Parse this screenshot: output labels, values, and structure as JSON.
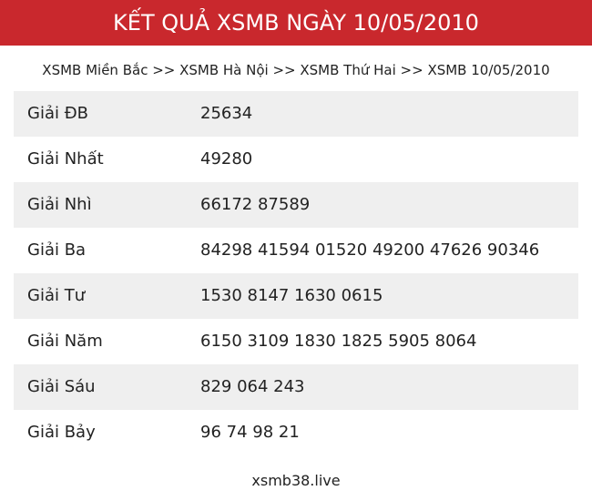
{
  "header": {
    "title": "KẾT QUẢ XSMB NGÀY 10/05/2010"
  },
  "breadcrumb": "XSMB Miền Bắc >> XSMB Hà Nội >> XSMB Thứ Hai >> XSMB 10/05/2010",
  "table": {
    "rows": [
      [
        "Giải ĐB",
        "25634"
      ],
      [
        "Giải Nhất",
        "49280"
      ],
      [
        "Giải Nhì",
        "66172 87589"
      ],
      [
        "Giải Ba",
        "84298 41594 01520 49200 47626 90346"
      ],
      [
        "Giải Tư",
        "1530 8147 1630 0615"
      ],
      [
        "Giải Năm",
        "6150 3109 1830 1825 5905 8064"
      ],
      [
        "Giải Sáu",
        "829 064 243"
      ],
      [
        "Giải Bảy",
        "96 74 98 21"
      ]
    ]
  },
  "footer": {
    "site": "xsmb38.live"
  }
}
